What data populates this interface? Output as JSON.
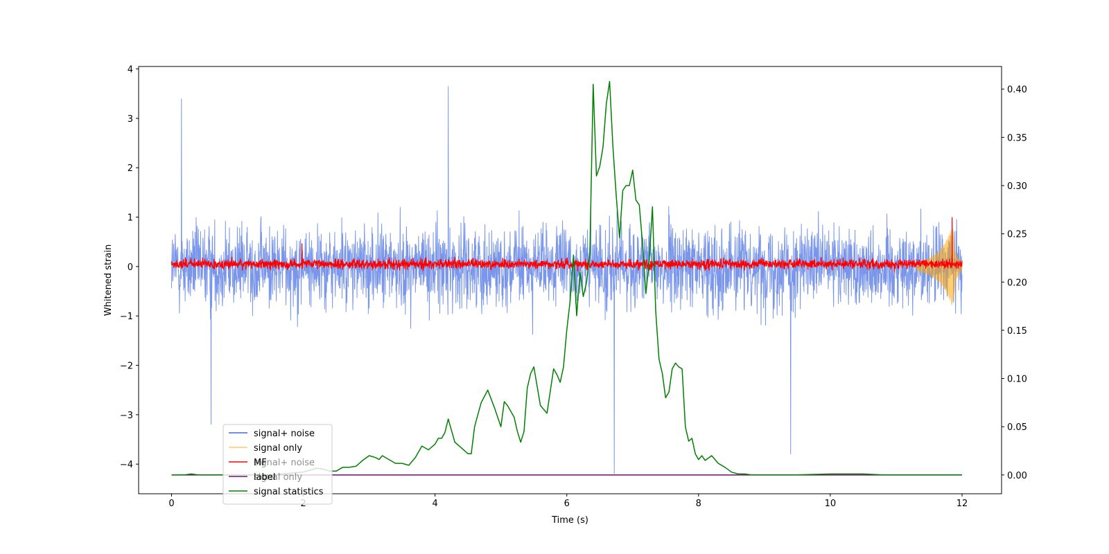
{
  "chart_data": {
    "type": "line",
    "xlabel": "Time (s)",
    "ylabel": "Whitened strain",
    "xlim": [
      -0.5,
      12.6
    ],
    "ylim_left": [
      -4.6,
      4.05
    ],
    "ylim_right": [
      -0.0195,
      0.4235
    ],
    "x_ticks": [
      0,
      2,
      4,
      6,
      8,
      10,
      12
    ],
    "y_ticks_left": [
      -4,
      -3,
      -2,
      -1,
      0,
      1,
      2,
      3,
      4
    ],
    "y_ticks_right": [
      "0.00",
      "0.05",
      "0.10",
      "0.15",
      "0.20",
      "0.25",
      "0.30",
      "0.35",
      "0.40"
    ],
    "grid": false,
    "legend_placement": "lower-left",
    "legend": [
      {
        "label": "signal+ noise",
        "color": "#4169e1"
      },
      {
        "label": "signal only",
        "color": "#ffa500"
      },
      {
        "label": "MF",
        "color": "#ff0000"
      },
      {
        "label": "label",
        "color": "#800080"
      },
      {
        "label": "signal statistics",
        "color": "#008000"
      }
    ],
    "legend_overlap_text": [
      "signal+ noise",
      "signal only"
    ],
    "series": [
      {
        "name": "signal+ noise",
        "axis": "left",
        "color": "#4169e1",
        "x_range": [
          0,
          12
        ],
        "typical_range": [
          -1.6,
          1.6
        ],
        "peak_range": [
          -4.2,
          3.65
        ],
        "notable_extrema": [
          {
            "x": 0.15,
            "y": 3.4
          },
          {
            "x": 4.2,
            "y": 3.65
          },
          {
            "x": 6.72,
            "y": -4.2
          },
          {
            "x": 9.4,
            "y": -3.8
          },
          {
            "x": 0.6,
            "y": -3.2
          }
        ]
      },
      {
        "name": "signal only",
        "axis": "left",
        "color": "#ffa500",
        "x_range": [
          11.3,
          12
        ],
        "envelope": [
          [
            11.3,
            0.05
          ],
          [
            11.5,
            0.12
          ],
          [
            11.65,
            0.22
          ],
          [
            11.75,
            0.35
          ],
          [
            11.82,
            0.5
          ],
          [
            11.86,
            0.6
          ],
          [
            11.9,
            0.2
          ],
          [
            12.0,
            0.05
          ]
        ]
      },
      {
        "name": "MF",
        "axis": "left",
        "color": "#ff0000",
        "x_range": [
          0,
          12
        ],
        "typical_range": [
          -0.15,
          0.25
        ],
        "notable_extrema": [
          {
            "x": 1.98,
            "y": 0.47
          },
          {
            "x": 11.85,
            "y": 1.0
          }
        ]
      },
      {
        "name": "label",
        "axis": "right",
        "color": "#800080",
        "x": [
          0,
          12
        ],
        "y": [
          0,
          0
        ]
      },
      {
        "name": "signal statistics",
        "axis": "right",
        "color": "#008000",
        "x": [
          0,
          0.2,
          0.3,
          0.4,
          0.5,
          1.0,
          1.5,
          2.0,
          2.2,
          2.3,
          2.4,
          2.5,
          2.6,
          2.7,
          2.8,
          2.9,
          3.0,
          3.1,
          3.15,
          3.2,
          3.3,
          3.4,
          3.5,
          3.6,
          3.7,
          3.8,
          3.9,
          4.0,
          4.05,
          4.1,
          4.15,
          4.2,
          4.3,
          4.4,
          4.5,
          4.55,
          4.6,
          4.7,
          4.8,
          4.9,
          5.0,
          5.05,
          5.1,
          5.2,
          5.25,
          5.3,
          5.35,
          5.4,
          5.45,
          5.5,
          5.6,
          5.7,
          5.8,
          5.85,
          5.9,
          5.95,
          6.0,
          6.05,
          6.1,
          6.15,
          6.2,
          6.25,
          6.3,
          6.35,
          6.4,
          6.45,
          6.5,
          6.55,
          6.6,
          6.65,
          6.7,
          6.75,
          6.8,
          6.85,
          6.9,
          6.95,
          7.0,
          7.05,
          7.1,
          7.15,
          7.2,
          7.25,
          7.3,
          7.35,
          7.4,
          7.45,
          7.5,
          7.55,
          7.6,
          7.65,
          7.7,
          7.75,
          7.8,
          7.85,
          7.9,
          7.95,
          8.0,
          8.05,
          8.1,
          8.2,
          8.3,
          8.4,
          8.5,
          8.6,
          8.7,
          8.8,
          9.0,
          9.5,
          10.0,
          10.5,
          10.8,
          11.0,
          11.5,
          12.0
        ],
        "y": [
          0.0,
          0.0,
          0.001,
          0.0,
          0.0,
          0.0,
          0.0,
          0.003,
          0.007,
          0.006,
          0.004,
          0.004,
          0.008,
          0.008,
          0.009,
          0.015,
          0.02,
          0.018,
          0.016,
          0.02,
          0.016,
          0.012,
          0.012,
          0.01,
          0.018,
          0.03,
          0.026,
          0.032,
          0.038,
          0.038,
          0.044,
          0.058,
          0.034,
          0.028,
          0.022,
          0.022,
          0.05,
          0.075,
          0.088,
          0.07,
          0.05,
          0.076,
          0.072,
          0.06,
          0.045,
          0.034,
          0.045,
          0.09,
          0.105,
          0.112,
          0.072,
          0.064,
          0.11,
          0.104,
          0.096,
          0.112,
          0.15,
          0.18,
          0.228,
          0.165,
          0.21,
          0.185,
          0.2,
          0.23,
          0.405,
          0.31,
          0.32,
          0.34,
          0.385,
          0.408,
          0.34,
          0.29,
          0.246,
          0.295,
          0.3,
          0.3,
          0.316,
          0.285,
          0.28,
          0.24,
          0.188,
          0.22,
          0.278,
          0.17,
          0.12,
          0.105,
          0.08,
          0.086,
          0.11,
          0.116,
          0.112,
          0.11,
          0.05,
          0.035,
          0.038,
          0.022,
          0.016,
          0.02,
          0.015,
          0.02,
          0.012,
          0.008,
          0.003,
          0.001,
          0.001,
          0.0,
          0.0,
          0.0,
          0.001,
          0.001,
          0.0,
          0.0,
          0.0,
          0.0
        ]
      }
    ]
  }
}
